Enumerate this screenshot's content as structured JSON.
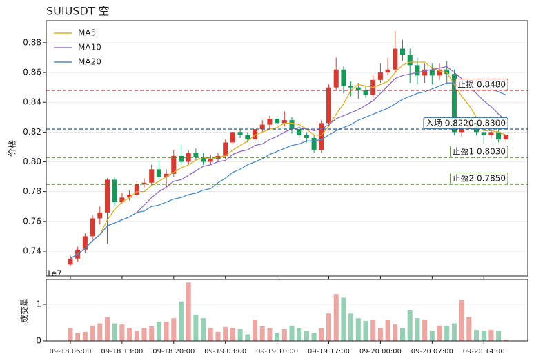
{
  "chart_data": {
    "type": "candlestick",
    "title": "SUIUSDT 空",
    "ylabel": "价格",
    "x": [
      0,
      1,
      2,
      3,
      4,
      5,
      6,
      7,
      8,
      9,
      10,
      11,
      12,
      13,
      14,
      15,
      16,
      17,
      18,
      19,
      20,
      21,
      22,
      23,
      24,
      25,
      26,
      27,
      28,
      29,
      30,
      31,
      32,
      33,
      34,
      35,
      36,
      37,
      38,
      39,
      40,
      41,
      42,
      43,
      44,
      45,
      46,
      47,
      48,
      49,
      50,
      51,
      52,
      53,
      54,
      55,
      56,
      57,
      58,
      59
    ],
    "xlim": [
      -3.27,
      61.96
    ],
    "xticks": [
      {
        "value": 0,
        "label": "09-18 06:00"
      },
      {
        "value": 7,
        "label": "09-18 13:00"
      },
      {
        "value": 14,
        "label": "09-18 20:00"
      },
      {
        "value": 21,
        "label": "09-19 03:00"
      },
      {
        "value": 28,
        "label": "09-19 10:00"
      },
      {
        "value": 35,
        "label": "09-19 17:00"
      },
      {
        "value": 42,
        "label": "09-20 00:00"
      },
      {
        "value": 49,
        "label": "09-20 07:00"
      },
      {
        "value": 56,
        "label": "09-20 14:00"
      }
    ],
    "ylim": [
      0.7233,
      0.8948
    ],
    "yticks": [
      0.74,
      0.76,
      0.78,
      {
        "value": 0.8,
        "label": "0.80"
      },
      0.82,
      0.84,
      0.86,
      0.88
    ],
    "grid": true,
    "up_color": "#d63b32",
    "down_color": "#17995a",
    "candles": {
      "open": [
        0.731,
        0.735,
        0.741,
        0.75,
        0.762,
        0.766,
        0.788,
        0.773,
        0.776,
        0.778,
        0.785,
        0.786,
        0.795,
        0.79,
        0.792,
        0.804,
        0.8,
        0.806,
        0.803,
        0.8,
        0.802,
        0.804,
        0.813,
        0.82,
        0.818,
        0.815,
        0.822,
        0.825,
        0.829,
        0.826,
        0.828,
        0.822,
        0.818,
        0.816,
        0.808,
        0.826,
        0.85,
        0.862,
        0.851,
        0.85,
        0.848,
        0.845,
        0.855,
        0.86,
        0.862,
        0.876,
        0.872,
        0.865,
        0.858,
        0.862,
        0.858,
        0.862,
        0.859,
        0.82,
        0.823,
        0.826,
        0.82,
        0.818,
        0.82,
        0.815
      ],
      "high": [
        0.737,
        0.743,
        0.752,
        0.764,
        0.77,
        0.789,
        0.79,
        0.779,
        0.781,
        0.787,
        0.789,
        0.798,
        0.801,
        0.795,
        0.808,
        0.812,
        0.808,
        0.809,
        0.806,
        0.805,
        0.806,
        0.815,
        0.823,
        0.822,
        0.82,
        0.832,
        0.828,
        0.831,
        0.832,
        0.834,
        0.83,
        0.824,
        0.82,
        0.818,
        0.828,
        0.852,
        0.87,
        0.864,
        0.854,
        0.853,
        0.851,
        0.858,
        0.866,
        0.87,
        0.888,
        0.882,
        0.876,
        0.87,
        0.866,
        0.866,
        0.866,
        0.868,
        0.862,
        0.826,
        0.83,
        0.829,
        0.823,
        0.822,
        0.822,
        0.82
      ],
      "low": [
        0.73,
        0.733,
        0.739,
        0.748,
        0.758,
        0.745,
        0.77,
        0.772,
        0.774,
        0.776,
        0.783,
        0.784,
        0.788,
        0.782,
        0.79,
        0.798,
        0.798,
        0.801,
        0.798,
        0.798,
        0.8,
        0.802,
        0.811,
        0.816,
        0.813,
        0.814,
        0.82,
        0.822,
        0.824,
        0.824,
        0.819,
        0.816,
        0.813,
        0.806,
        0.806,
        0.824,
        0.848,
        0.846,
        0.844,
        0.842,
        0.843,
        0.843,
        0.853,
        0.858,
        0.86,
        0.868,
        0.853,
        0.852,
        0.853,
        0.852,
        0.855,
        0.852,
        0.818,
        0.817,
        0.821,
        0.818,
        0.812,
        0.816,
        0.813,
        0.813
      ],
      "close": [
        0.735,
        0.741,
        0.75,
        0.762,
        0.766,
        0.788,
        0.773,
        0.776,
        0.778,
        0.785,
        0.786,
        0.795,
        0.79,
        0.792,
        0.804,
        0.8,
        0.806,
        0.803,
        0.8,
        0.802,
        0.804,
        0.813,
        0.82,
        0.818,
        0.815,
        0.822,
        0.825,
        0.829,
        0.826,
        0.828,
        0.822,
        0.818,
        0.816,
        0.808,
        0.826,
        0.85,
        0.862,
        0.851,
        0.85,
        0.848,
        0.845,
        0.855,
        0.86,
        0.862,
        0.876,
        0.872,
        0.865,
        0.858,
        0.862,
        0.858,
        0.862,
        0.859,
        0.82,
        0.823,
        0.826,
        0.82,
        0.818,
        0.82,
        0.815,
        0.818
      ]
    },
    "series": [
      {
        "name": "MA5",
        "color": "#e2b01e",
        "values": [
          0.735,
          0.738,
          0.742,
          0.747,
          0.751,
          0.761,
          0.768,
          0.773,
          0.776,
          0.78,
          0.78,
          0.784,
          0.787,
          0.79,
          0.793,
          0.796,
          0.798,
          0.801,
          0.803,
          0.802,
          0.803,
          0.804,
          0.808,
          0.811,
          0.814,
          0.818,
          0.82,
          0.822,
          0.823,
          0.826,
          0.826,
          0.825,
          0.822,
          0.818,
          0.818,
          0.824,
          0.832,
          0.839,
          0.848,
          0.852,
          0.851,
          0.85,
          0.852,
          0.854,
          0.86,
          0.865,
          0.867,
          0.867,
          0.867,
          0.863,
          0.861,
          0.86,
          0.852,
          0.844,
          0.838,
          0.83,
          0.821,
          0.821,
          0.82,
          0.818
        ]
      },
      {
        "name": "MA10",
        "color": "#8e6cc6",
        "values": [
          0.735,
          0.738,
          0.742,
          0.747,
          0.751,
          0.757,
          0.759,
          0.761,
          0.763,
          0.766,
          0.771,
          0.776,
          0.78,
          0.783,
          0.787,
          0.788,
          0.791,
          0.794,
          0.797,
          0.798,
          0.8,
          0.801,
          0.805,
          0.807,
          0.808,
          0.811,
          0.812,
          0.815,
          0.817,
          0.82,
          0.822,
          0.823,
          0.822,
          0.821,
          0.822,
          0.825,
          0.829,
          0.831,
          0.833,
          0.835,
          0.838,
          0.841,
          0.846,
          0.851,
          0.856,
          0.858,
          0.859,
          0.86,
          0.861,
          0.862,
          0.863,
          0.864,
          0.86,
          0.856,
          0.851,
          0.846,
          0.841,
          0.837,
          0.832,
          0.828
        ]
      },
      {
        "name": "MA20",
        "color": "#4a8ccc",
        "values": [
          0.735,
          0.738,
          0.742,
          0.747,
          0.751,
          0.757,
          0.759,
          0.761,
          0.763,
          0.766,
          0.767,
          0.77,
          0.771,
          0.773,
          0.775,
          0.776,
          0.778,
          0.779,
          0.781,
          0.782,
          0.786,
          0.789,
          0.793,
          0.795,
          0.798,
          0.8,
          0.802,
          0.805,
          0.807,
          0.809,
          0.811,
          0.812,
          0.814,
          0.814,
          0.815,
          0.818,
          0.821,
          0.823,
          0.825,
          0.828,
          0.83,
          0.832,
          0.834,
          0.836,
          0.839,
          0.842,
          0.844,
          0.846,
          0.847,
          0.849,
          0.851,
          0.853,
          0.853,
          0.854,
          0.854,
          0.852,
          0.85,
          0.849,
          0.847,
          0.845
        ]
      }
    ],
    "legend": "upper left",
    "levels": [
      {
        "value": 0.848,
        "label": "止损 0.8480",
        "color": "#b03a3a"
      },
      {
        "value": 0.822,
        "label": "入场 0.8220-0.8300",
        "color": "#2b6aa6"
      },
      {
        "value": 0.803,
        "label": "止盈1 0.8030",
        "color": "#4a7a24"
      },
      {
        "value": 0.785,
        "label": "止盈2 0.7850",
        "color": "#4a7a24"
      }
    ],
    "volume": {
      "ylabel": "成交量",
      "offset_label": "1e7",
      "ylim": [
        0,
        1.68
      ],
      "yticks": [
        0,
        1
      ],
      "values": [
        0.35,
        0.22,
        0.25,
        0.42,
        0.48,
        0.65,
        0.48,
        0.45,
        0.35,
        0.28,
        0.35,
        0.4,
        0.53,
        0.52,
        0.62,
        1.08,
        1.6,
        0.72,
        0.62,
        0.35,
        0.25,
        0.38,
        0.35,
        0.32,
        0.18,
        0.58,
        0.4,
        0.35,
        0.22,
        0.32,
        0.42,
        0.35,
        0.28,
        0.22,
        0.35,
        0.75,
        1.28,
        1.18,
        0.75,
        0.62,
        0.55,
        0.58,
        0.35,
        0.58,
        0.45,
        0.35,
        0.85,
        0.62,
        0.58,
        0.28,
        0.42,
        0.42,
        0.48,
        1.12,
        0.65,
        0.3,
        0.28,
        0.3,
        0.28,
        0.03
      ]
    }
  }
}
